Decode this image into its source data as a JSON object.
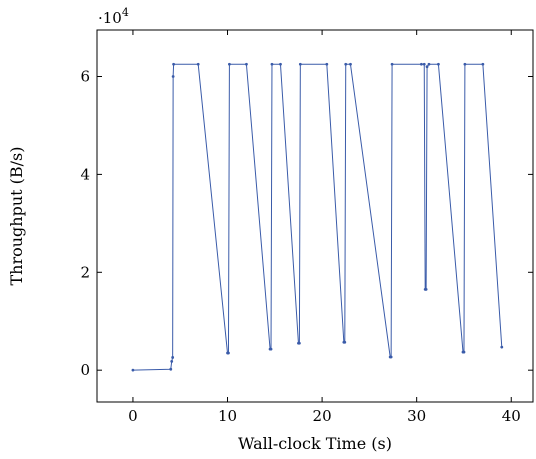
{
  "chart_data": {
    "type": "line",
    "xlabel": "Wall-clock Time (s)",
    "ylabel": "Throughput (B/s)",
    "y_multiplier_label": "·10",
    "y_multiplier_exponent": "4",
    "xlim": [
      -3.8,
      42.3
    ],
    "ylim": [
      -0.65,
      6.95
    ],
    "y_scale_factor": 10000,
    "x_ticks": [
      0,
      10,
      20,
      30,
      40
    ],
    "x_tick_labels": [
      "0",
      "10",
      "20",
      "30",
      "40"
    ],
    "y_ticks": [
      0,
      2,
      4,
      6
    ],
    "y_tick_labels": [
      "0",
      "2",
      "4",
      "6"
    ],
    "grid": false,
    "legend": "none",
    "line_color": "#3a5ba9",
    "series": [
      {
        "x": [
          0,
          4.0,
          4.1,
          4.2,
          4.25,
          4.3,
          6.9,
          10.0,
          10.1,
          10.2,
          12.0,
          14.5,
          14.6,
          14.7,
          15.6,
          17.5,
          17.6,
          17.7,
          20.5,
          22.3,
          22.4,
          22.5,
          23.0,
          27.2,
          27.3,
          27.4,
          30.5,
          30.8,
          30.9,
          31.0,
          31.1,
          31.3,
          32.3,
          34.9,
          35.0,
          35.1,
          37.0,
          39.0
        ],
        "y": [
          0,
          0.02,
          0.18,
          0.26,
          6.0,
          6.25,
          6.25,
          0.35,
          0.35,
          6.25,
          6.25,
          0.43,
          0.43,
          6.25,
          6.25,
          0.55,
          0.55,
          6.25,
          6.25,
          0.57,
          0.57,
          6.25,
          6.25,
          0.27,
          0.27,
          6.25,
          6.25,
          6.25,
          1.65,
          1.65,
          6.2,
          6.25,
          6.25,
          0.37,
          0.37,
          6.25,
          6.25,
          0.47
        ]
      }
    ]
  }
}
